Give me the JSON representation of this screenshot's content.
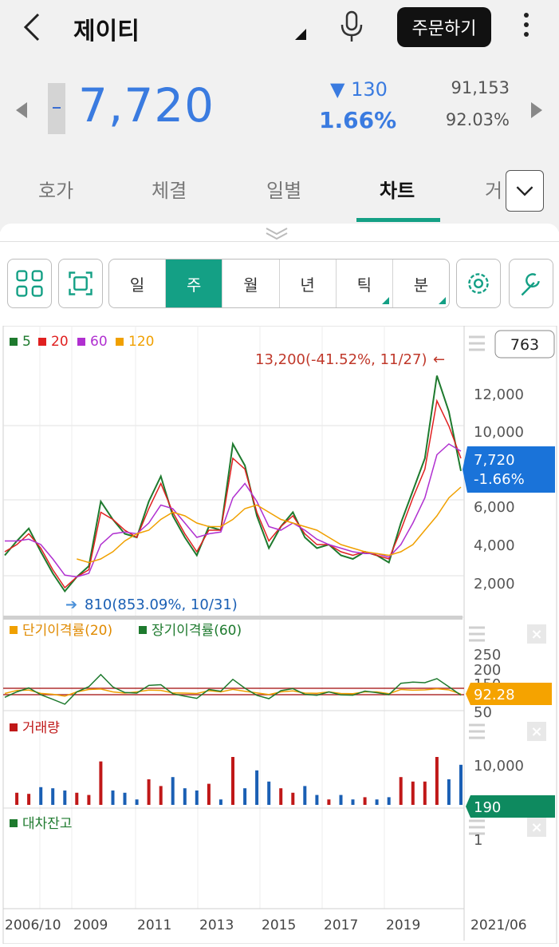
{
  "header": {
    "stock_name": "제이티",
    "order_button": "주문하기"
  },
  "quote": {
    "price": "7,720",
    "change": "▼ 130",
    "change_rate": "1.66%",
    "volume": "91,153",
    "volume_ratio": "92.03%"
  },
  "tabs": [
    {
      "label": "호가"
    },
    {
      "label": "체결"
    },
    {
      "label": "일별"
    },
    {
      "label": "차트"
    },
    {
      "label": "거"
    }
  ],
  "period": {
    "items": [
      {
        "label": "일"
      },
      {
        "label": "주"
      },
      {
        "label": "월"
      },
      {
        "label": "년"
      },
      {
        "label": "틱"
      },
      {
        "label": "분"
      }
    ],
    "selected": "주"
  },
  "chart": {
    "count_box": "763",
    "ma_legend": [
      {
        "label": "5",
        "color": "#1e7a2e"
      },
      {
        "label": "20",
        "color": "#e02020"
      },
      {
        "label": "60",
        "color": "#b030d0"
      },
      {
        "label": "120",
        "color": "#f0a000"
      }
    ],
    "high_annotation": "13,200(-41.52%, 11/27)",
    "high_arrow": "←",
    "low_annotation": "810(853.09%, 10/31)",
    "low_arrow": "➔",
    "price_labels": [
      "12,000",
      "10,000",
      "6,000",
      "4,000",
      "2,000"
    ],
    "current_tag": {
      "price": "7,720",
      "rate": "-1.66%"
    },
    "disparity_title_1": "단기이격률(20)",
    "disparity_title_2": "장기이격률(60)",
    "disparity_labels": [
      "250",
      "200",
      "150",
      "50"
    ],
    "disparity_tag": "92.28",
    "volume_title": "거래량",
    "volume_label": "10,000",
    "volume_tag": "190",
    "loan_title": "대차잔고",
    "loan_label": "1",
    "x_labels": [
      "2006/10",
      "2009",
      "2011",
      "2013",
      "2015",
      "2017",
      "2019",
      "2021/06"
    ],
    "colors": {
      "accent": "#14a085",
      "price_blue": "#3a7be0",
      "tag_blue": "#1a73d9",
      "tag_orange": "#f5a300",
      "tag_green": "#0e8a5f",
      "red": "#e02020",
      "green": "#1e7a2e"
    }
  },
  "chart_data": {
    "type": "line",
    "series": [
      {
        "name": "5",
        "values": [
          3.0,
          3.8,
          4.5,
          3.2,
          2.0,
          1.0,
          1.8,
          2.4,
          6.0,
          5.0,
          4.2,
          4.0,
          6.0,
          7.4,
          5.2,
          4.0,
          3.0,
          4.6,
          4.4,
          9.2,
          8.0,
          5.2,
          3.4,
          4.6,
          5.4,
          4.0,
          3.4,
          3.6,
          3.0,
          2.8,
          3.2,
          3.0,
          2.6,
          4.8,
          6.6,
          8.4,
          13.0,
          11.0,
          7.7
        ]
      },
      {
        "name": "20",
        "values": [
          3.2,
          3.6,
          4.2,
          3.4,
          2.2,
          1.2,
          1.8,
          2.2,
          5.4,
          5.0,
          4.4,
          4.0,
          5.6,
          7.0,
          5.4,
          4.2,
          3.2,
          4.4,
          4.4,
          8.4,
          7.8,
          5.4,
          3.8,
          4.6,
          5.2,
          4.2,
          3.6,
          3.6,
          3.2,
          3.0,
          3.2,
          3.0,
          2.8,
          4.4,
          6.2,
          7.8,
          11.6,
          10.2,
          8.4
        ]
      },
      {
        "name": "60",
        "values": [
          3.8,
          3.8,
          3.9,
          3.6,
          2.8,
          1.9,
          1.8,
          2.0,
          3.6,
          4.2,
          4.3,
          4.2,
          4.8,
          5.8,
          5.6,
          4.8,
          4.0,
          4.2,
          4.3,
          6.2,
          7.0,
          6.0,
          4.6,
          4.4,
          4.8,
          4.4,
          3.9,
          3.6,
          3.4,
          3.2,
          3.1,
          3.1,
          2.9,
          3.6,
          4.8,
          6.2,
          8.6,
          9.2,
          8.8
        ]
      },
      {
        "name": "120",
        "values": [
          null,
          null,
          null,
          null,
          null,
          null,
          2.8,
          2.6,
          2.8,
          3.2,
          3.8,
          4.2,
          4.4,
          5.0,
          5.4,
          5.2,
          4.8,
          4.6,
          4.6,
          5.0,
          5.6,
          5.8,
          5.4,
          5.0,
          4.8,
          4.6,
          4.4,
          4.0,
          3.6,
          3.4,
          3.2,
          3.1,
          3.0,
          3.2,
          3.6,
          4.4,
          5.2,
          6.2,
          6.8
        ]
      }
    ],
    "x": [
      "2006/10",
      "",
      "",
      "",
      "",
      "",
      "2009",
      "",
      "",
      "",
      "",
      "2011",
      "",
      "",
      "",
      "",
      "2013",
      "",
      "",
      "",
      "",
      "2015",
      "",
      "",
      "",
      "",
      "2017",
      "",
      "",
      "",
      "",
      "2019",
      "",
      "",
      "",
      "",
      "",
      "",
      "2021/06"
    ],
    "ylim": [
      0,
      14
    ],
    "y_unit_note": "values in thousands of KRW",
    "xlabel": "",
    "ylabel": ""
  }
}
